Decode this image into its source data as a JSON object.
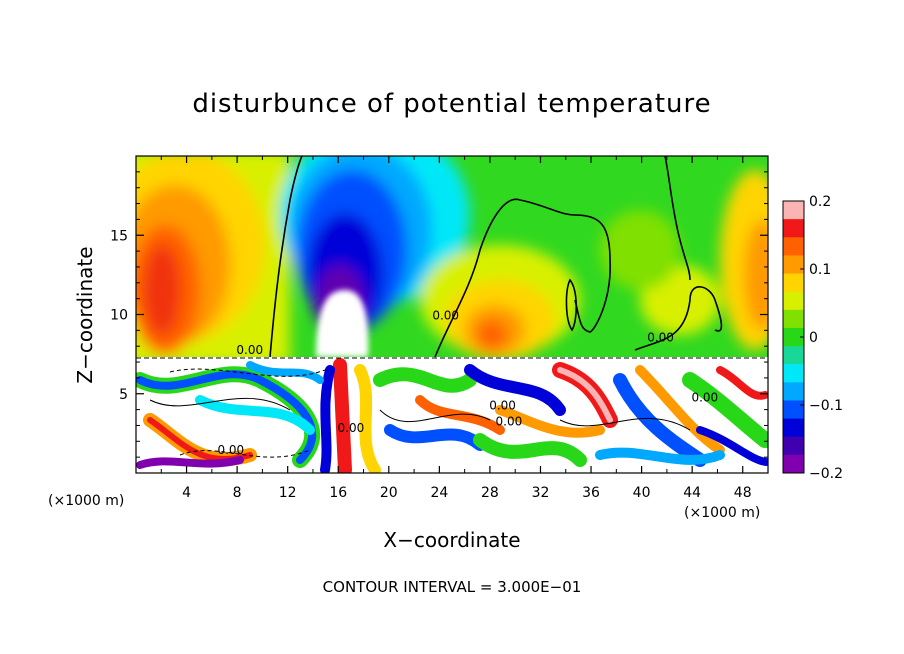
{
  "chart_data": {
    "type": "heatmap",
    "title": "disturbunce of potential temperature",
    "xlabel": "X−coordinate",
    "ylabel": "Z−coordinate",
    "x_unit_left": "(×1000 m)",
    "x_unit_right": "(×1000 m)",
    "footnote": "CONTOUR INTERVAL = 3.000E−01",
    "xlim": [
      0,
      50
    ],
    "ylim": [
      0,
      20
    ],
    "x_ticks": [
      4,
      8,
      12,
      16,
      20,
      24,
      28,
      32,
      36,
      40,
      44,
      48
    ],
    "x_tick_labels": [
      "4",
      "8",
      "12",
      "16",
      "20",
      "24",
      "28",
      "32",
      "36",
      "40",
      "44",
      "48"
    ],
    "y_ticks": [
      5,
      10,
      15
    ],
    "y_tick_labels": [
      "5",
      "10",
      "15"
    ],
    "colorbar": {
      "range": [
        -0.2,
        0.2
      ],
      "tick_values": [
        0.2,
        0.1,
        0,
        -0.1,
        -0.2
      ],
      "tick_labels": [
        "0.2",
        "0.1",
        "0",
        "−0.1",
        "−0.2"
      ],
      "colors": [
        "#fbb4b4",
        "#f01818",
        "#ff6000",
        "#ff9a00",
        "#ffd400",
        "#d8f000",
        "#80e000",
        "#28d818",
        "#18d898",
        "#00e8f8",
        "#00a8ff",
        "#0050ff",
        "#0000d8",
        "#4000b0",
        "#8000b0"
      ]
    },
    "layer_boundary_z": 7.2,
    "contour_level_labels": [
      {
        "text": "0.00",
        "x": 9,
        "z": 7.5
      },
      {
        "text": "0.00",
        "x": 24.5,
        "z": 9.7
      },
      {
        "text": "0.00",
        "x": 41.5,
        "z": 8.3
      },
      {
        "text": "0.00",
        "x": 17,
        "z": 2.6
      },
      {
        "text": "0.00",
        "x": 29,
        "z": 4.0
      },
      {
        "text": "0.00",
        "x": 29.5,
        "z": 3.0
      },
      {
        "text": "0.00",
        "x": 45,
        "z": 4.5
      },
      {
        "text": "0.00",
        "x": 7.5,
        "z": 1.2
      }
    ],
    "features": [
      {
        "kind": "cold anomaly",
        "x_center": 18,
        "z_range": [
          9,
          19
        ],
        "min_value": -0.2
      },
      {
        "kind": "warm anomaly",
        "x_center": 2,
        "z_range": [
          8,
          17
        ],
        "max_value": 0.12
      },
      {
        "kind": "warm anomaly",
        "x_center": 29,
        "z_range": [
          7.5,
          11
        ],
        "max_value": 0.1
      },
      {
        "kind": "warm anomaly",
        "x_center": 49.5,
        "z_range": [
          9,
          16
        ],
        "max_value": 0.1
      }
    ]
  }
}
